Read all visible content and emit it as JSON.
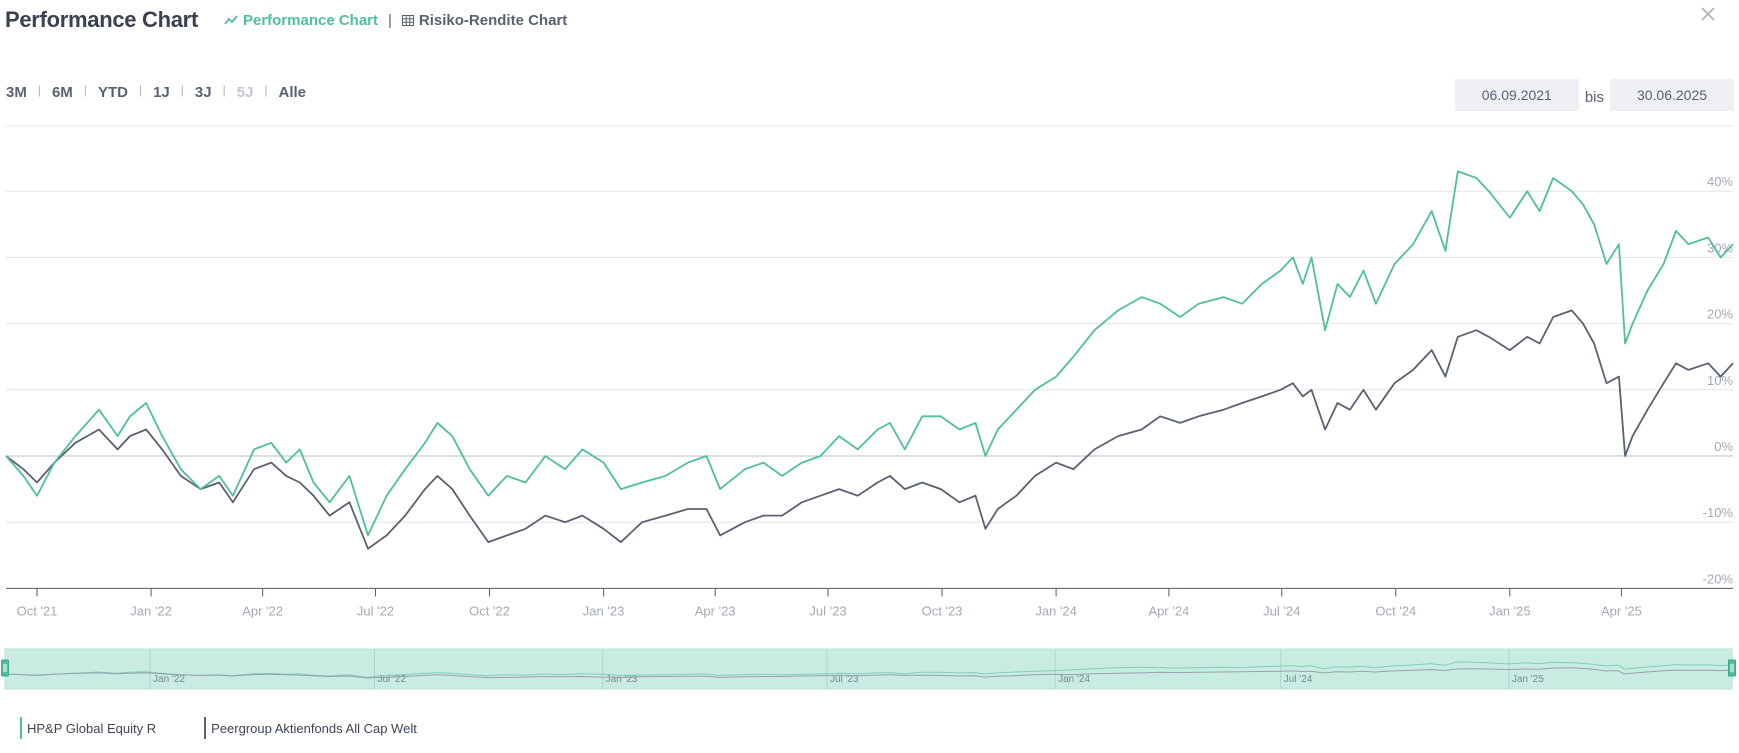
{
  "header": {
    "title": "Performance Chart",
    "tabs": [
      {
        "label": "Performance Chart",
        "active": true,
        "icon": "line-chart-icon"
      },
      {
        "label": "Risiko-Rendite Chart",
        "active": false,
        "icon": "grid-icon"
      }
    ],
    "tab_separator": "|",
    "close_icon": "close-icon"
  },
  "range_buttons": [
    {
      "label": "3M",
      "disabled": false
    },
    {
      "label": "6M",
      "disabled": false
    },
    {
      "label": "YTD",
      "disabled": false
    },
    {
      "label": "1J",
      "disabled": false
    },
    {
      "label": "3J",
      "disabled": false
    },
    {
      "label": "5J",
      "disabled": true
    },
    {
      "label": "Alle",
      "disabled": false
    }
  ],
  "date_range": {
    "from": "06.09.2021",
    "separator": "bis",
    "to": "30.06.2025"
  },
  "colors": {
    "accent": "#4fbf9f",
    "fund_line": "#4fbf9f",
    "peer_line": "#5c6171",
    "navigator_fill": "#c8ece2",
    "grid": "#e4e6ea",
    "axis_text": "#a4a9b3"
  },
  "chart_data": {
    "type": "line",
    "title": "",
    "xlabel": "",
    "ylabel": "",
    "x_tick_labels": [
      "Oct '21",
      "Jan '22",
      "Apr '22",
      "Jul '22",
      "Oct '22",
      "Jan '23",
      "Apr '23",
      "Jul '23",
      "Oct '23",
      "Jan '24",
      "Apr '24",
      "Jul '24",
      "Oct '24",
      "Jan '25",
      "Apr '25"
    ],
    "x_tick_dates": [
      "2021-10-01",
      "2022-01-01",
      "2022-04-01",
      "2022-07-01",
      "2022-10-01",
      "2023-01-01",
      "2023-04-01",
      "2023-07-01",
      "2023-10-01",
      "2024-01-01",
      "2024-04-01",
      "2024-07-01",
      "2024-10-01",
      "2025-01-01",
      "2025-04-01"
    ],
    "y_tick_labels": [
      "40%",
      "30%",
      "20%",
      "10%",
      "0%",
      "-10%",
      "-20%"
    ],
    "y_tick_values": [
      40,
      30,
      20,
      10,
      0,
      -10,
      -20
    ],
    "xlim": [
      "2021-09-06",
      "2025-06-30"
    ],
    "ylim": [
      -20,
      50
    ],
    "grid": true,
    "legend_position": "bottom-left",
    "navigator_labels": [
      "Jan '22",
      "Jul '22",
      "Jan '23",
      "Jul '23",
      "Jan '24",
      "Jul '24",
      "Jan '25"
    ],
    "navigator_dates": [
      "2022-01-01",
      "2022-07-01",
      "2023-01-01",
      "2023-07-01",
      "2024-01-01",
      "2024-07-01",
      "2025-01-01"
    ],
    "series": [
      {
        "name": "HP&P Global Equity R",
        "color": "#4fbf9f",
        "points": [
          [
            "2021-09-06",
            0
          ],
          [
            "2021-09-20",
            -3
          ],
          [
            "2021-10-01",
            -6
          ],
          [
            "2021-10-15",
            -1
          ],
          [
            "2021-11-01",
            3
          ],
          [
            "2021-11-20",
            7
          ],
          [
            "2021-12-05",
            3
          ],
          [
            "2021-12-15",
            6
          ],
          [
            "2021-12-28",
            8
          ],
          [
            "2022-01-10",
            3
          ],
          [
            "2022-01-25",
            -2
          ],
          [
            "2022-02-10",
            -5
          ],
          [
            "2022-02-25",
            -3
          ],
          [
            "2022-03-08",
            -6
          ],
          [
            "2022-03-25",
            1
          ],
          [
            "2022-04-08",
            2
          ],
          [
            "2022-04-20",
            -1
          ],
          [
            "2022-05-01",
            1
          ],
          [
            "2022-05-12",
            -4
          ],
          [
            "2022-05-25",
            -7
          ],
          [
            "2022-06-10",
            -3
          ],
          [
            "2022-06-25",
            -12
          ],
          [
            "2022-07-10",
            -6
          ],
          [
            "2022-07-25",
            -2
          ],
          [
            "2022-08-10",
            2
          ],
          [
            "2022-08-20",
            5
          ],
          [
            "2022-09-01",
            3
          ],
          [
            "2022-09-15",
            -2
          ],
          [
            "2022-09-30",
            -6
          ],
          [
            "2022-10-15",
            -3
          ],
          [
            "2022-10-30",
            -4
          ],
          [
            "2022-11-15",
            0
          ],
          [
            "2022-12-01",
            -2
          ],
          [
            "2022-12-15",
            1
          ],
          [
            "2023-01-01",
            -1
          ],
          [
            "2023-01-15",
            -5
          ],
          [
            "2023-02-01",
            -4
          ],
          [
            "2023-02-20",
            -3
          ],
          [
            "2023-03-10",
            -1
          ],
          [
            "2023-03-25",
            0
          ],
          [
            "2023-04-05",
            -5
          ],
          [
            "2023-04-25",
            -2
          ],
          [
            "2023-05-10",
            -1
          ],
          [
            "2023-05-25",
            -3
          ],
          [
            "2023-06-10",
            -1
          ],
          [
            "2023-06-25",
            0
          ],
          [
            "2023-07-10",
            3
          ],
          [
            "2023-07-25",
            1
          ],
          [
            "2023-08-10",
            4
          ],
          [
            "2023-08-20",
            5
          ],
          [
            "2023-09-01",
            1
          ],
          [
            "2023-09-15",
            6
          ],
          [
            "2023-09-30",
            6
          ],
          [
            "2023-10-15",
            4
          ],
          [
            "2023-10-28",
            5
          ],
          [
            "2023-11-05",
            0
          ],
          [
            "2023-11-15",
            4
          ],
          [
            "2023-11-30",
            7
          ],
          [
            "2023-12-15",
            10
          ],
          [
            "2024-01-01",
            12
          ],
          [
            "2024-01-15",
            15
          ],
          [
            "2024-02-01",
            19
          ],
          [
            "2024-02-20",
            22
          ],
          [
            "2024-03-10",
            24
          ],
          [
            "2024-03-25",
            23
          ],
          [
            "2024-04-10",
            21
          ],
          [
            "2024-04-25",
            23
          ],
          [
            "2024-05-15",
            24
          ],
          [
            "2024-05-30",
            23
          ],
          [
            "2024-06-15",
            26
          ],
          [
            "2024-06-30",
            28
          ],
          [
            "2024-07-10",
            30
          ],
          [
            "2024-07-18",
            26
          ],
          [
            "2024-07-25",
            30
          ],
          [
            "2024-08-05",
            19
          ],
          [
            "2024-08-15",
            26
          ],
          [
            "2024-08-25",
            24
          ],
          [
            "2024-09-05",
            28
          ],
          [
            "2024-09-15",
            23
          ],
          [
            "2024-09-30",
            29
          ],
          [
            "2024-10-15",
            32
          ],
          [
            "2024-10-30",
            37
          ],
          [
            "2024-11-10",
            31
          ],
          [
            "2024-11-20",
            43
          ],
          [
            "2024-12-05",
            42
          ],
          [
            "2024-12-15",
            40
          ],
          [
            "2025-01-01",
            36
          ],
          [
            "2025-01-15",
            40
          ],
          [
            "2025-01-25",
            37
          ],
          [
            "2025-02-05",
            42
          ],
          [
            "2025-02-20",
            40
          ],
          [
            "2025-03-01",
            38
          ],
          [
            "2025-03-10",
            35
          ],
          [
            "2025-03-20",
            29
          ],
          [
            "2025-03-30",
            32
          ],
          [
            "2025-04-04",
            17
          ],
          [
            "2025-04-10",
            20
          ],
          [
            "2025-04-22",
            25
          ],
          [
            "2025-05-05",
            29
          ],
          [
            "2025-05-15",
            34
          ],
          [
            "2025-05-25",
            32
          ],
          [
            "2025-06-10",
            33
          ],
          [
            "2025-06-20",
            30
          ],
          [
            "2025-06-30",
            32
          ]
        ]
      },
      {
        "name": "Peergroup Aktienfonds All Cap Welt",
        "color": "#5c6171",
        "points": [
          [
            "2021-09-06",
            0
          ],
          [
            "2021-09-20",
            -2
          ],
          [
            "2021-10-01",
            -4
          ],
          [
            "2021-10-15",
            -1
          ],
          [
            "2021-11-01",
            2
          ],
          [
            "2021-11-20",
            4
          ],
          [
            "2021-12-05",
            1
          ],
          [
            "2021-12-15",
            3
          ],
          [
            "2021-12-28",
            4
          ],
          [
            "2022-01-10",
            1
          ],
          [
            "2022-01-25",
            -3
          ],
          [
            "2022-02-10",
            -5
          ],
          [
            "2022-02-25",
            -4
          ],
          [
            "2022-03-08",
            -7
          ],
          [
            "2022-03-25",
            -2
          ],
          [
            "2022-04-08",
            -1
          ],
          [
            "2022-04-20",
            -3
          ],
          [
            "2022-05-01",
            -4
          ],
          [
            "2022-05-12",
            -6
          ],
          [
            "2022-05-25",
            -9
          ],
          [
            "2022-06-10",
            -7
          ],
          [
            "2022-06-25",
            -14
          ],
          [
            "2022-07-10",
            -12
          ],
          [
            "2022-07-25",
            -9
          ],
          [
            "2022-08-10",
            -5
          ],
          [
            "2022-08-20",
            -3
          ],
          [
            "2022-09-01",
            -5
          ],
          [
            "2022-09-15",
            -9
          ],
          [
            "2022-09-30",
            -13
          ],
          [
            "2022-10-15",
            -12
          ],
          [
            "2022-10-30",
            -11
          ],
          [
            "2022-11-15",
            -9
          ],
          [
            "2022-12-01",
            -10
          ],
          [
            "2022-12-15",
            -9
          ],
          [
            "2023-01-01",
            -11
          ],
          [
            "2023-01-15",
            -13
          ],
          [
            "2023-02-01",
            -10
          ],
          [
            "2023-02-20",
            -9
          ],
          [
            "2023-03-10",
            -8
          ],
          [
            "2023-03-25",
            -8
          ],
          [
            "2023-04-05",
            -12
          ],
          [
            "2023-04-25",
            -10
          ],
          [
            "2023-05-10",
            -9
          ],
          [
            "2023-05-25",
            -9
          ],
          [
            "2023-06-10",
            -7
          ],
          [
            "2023-06-25",
            -6
          ],
          [
            "2023-07-10",
            -5
          ],
          [
            "2023-07-25",
            -6
          ],
          [
            "2023-08-10",
            -4
          ],
          [
            "2023-08-20",
            -3
          ],
          [
            "2023-09-01",
            -5
          ],
          [
            "2023-09-15",
            -4
          ],
          [
            "2023-09-30",
            -5
          ],
          [
            "2023-10-15",
            -7
          ],
          [
            "2023-10-28",
            -6
          ],
          [
            "2023-11-05",
            -11
          ],
          [
            "2023-11-15",
            -8
          ],
          [
            "2023-11-30",
            -6
          ],
          [
            "2023-12-15",
            -3
          ],
          [
            "2024-01-01",
            -1
          ],
          [
            "2024-01-15",
            -2
          ],
          [
            "2024-02-01",
            1
          ],
          [
            "2024-02-20",
            3
          ],
          [
            "2024-03-10",
            4
          ],
          [
            "2024-03-25",
            6
          ],
          [
            "2024-04-10",
            5
          ],
          [
            "2024-04-25",
            6
          ],
          [
            "2024-05-15",
            7
          ],
          [
            "2024-05-30",
            8
          ],
          [
            "2024-06-15",
            9
          ],
          [
            "2024-06-30",
            10
          ],
          [
            "2024-07-10",
            11
          ],
          [
            "2024-07-18",
            9
          ],
          [
            "2024-07-25",
            10
          ],
          [
            "2024-08-05",
            4
          ],
          [
            "2024-08-15",
            8
          ],
          [
            "2024-08-25",
            7
          ],
          [
            "2024-09-05",
            10
          ],
          [
            "2024-09-15",
            7
          ],
          [
            "2024-09-30",
            11
          ],
          [
            "2024-10-15",
            13
          ],
          [
            "2024-10-30",
            16
          ],
          [
            "2024-11-10",
            12
          ],
          [
            "2024-11-20",
            18
          ],
          [
            "2024-12-05",
            19
          ],
          [
            "2024-12-15",
            18
          ],
          [
            "2025-01-01",
            16
          ],
          [
            "2025-01-15",
            18
          ],
          [
            "2025-01-25",
            17
          ],
          [
            "2025-02-05",
            21
          ],
          [
            "2025-02-20",
            22
          ],
          [
            "2025-03-01",
            20
          ],
          [
            "2025-03-10",
            17
          ],
          [
            "2025-03-20",
            11
          ],
          [
            "2025-03-30",
            12
          ],
          [
            "2025-04-04",
            0
          ],
          [
            "2025-04-10",
            3
          ],
          [
            "2025-04-22",
            7
          ],
          [
            "2025-05-05",
            11
          ],
          [
            "2025-05-15",
            14
          ],
          [
            "2025-05-25",
            13
          ],
          [
            "2025-06-10",
            14
          ],
          [
            "2025-06-20",
            12
          ],
          [
            "2025-06-30",
            14
          ]
        ]
      }
    ]
  }
}
